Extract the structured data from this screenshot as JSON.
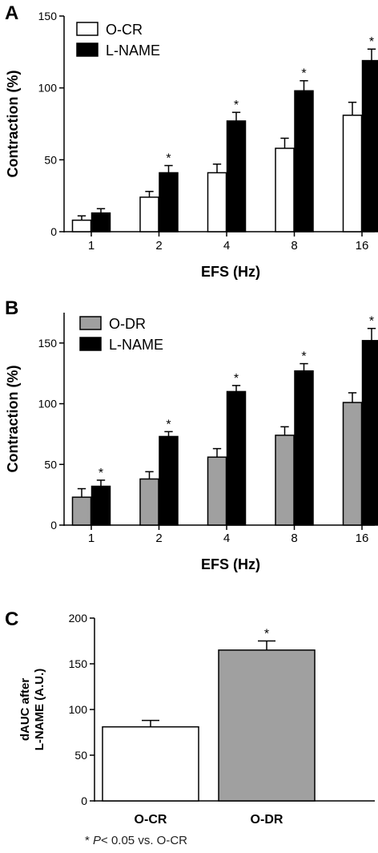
{
  "footnote": {
    "prefix": "* ",
    "p_symbol": "P",
    "text": "< 0.05 vs. O-CR"
  },
  "chart_data": [
    {
      "panel_label": "A",
      "type": "bar",
      "xlabel": "EFS (Hz)",
      "ylabel": "Contraction (%)",
      "ylim": [
        0,
        150
      ],
      "yticks": [
        0,
        50,
        100,
        150
      ],
      "categories": [
        "1",
        "2",
        "4",
        "8",
        "16"
      ],
      "legend_position": "top-left",
      "series": [
        {
          "name": "O-CR",
          "color": "#ffffff",
          "values": [
            8,
            24,
            41,
            58,
            81
          ],
          "errors": [
            3,
            4,
            6,
            7,
            9
          ],
          "significance": [
            "",
            "",
            "",
            "",
            ""
          ]
        },
        {
          "name": "L-NAME",
          "color": "#000000",
          "values": [
            13,
            41,
            77,
            98,
            119
          ],
          "errors": [
            3,
            5,
            6,
            7,
            8
          ],
          "significance": [
            "",
            "*",
            "*",
            "*",
            "*"
          ]
        }
      ]
    },
    {
      "panel_label": "B",
      "type": "bar",
      "xlabel": "EFS (Hz)",
      "ylabel": "Contraction (%)",
      "ylim": [
        0,
        175
      ],
      "yticks": [
        0,
        50,
        100,
        150
      ],
      "categories": [
        "1",
        "2",
        "4",
        "8",
        "16"
      ],
      "legend_position": "top-left",
      "series": [
        {
          "name": "O-DR",
          "color": "#a0a0a0",
          "values": [
            23,
            38,
            56,
            74,
            101
          ],
          "errors": [
            7,
            6,
            7,
            7,
            8
          ],
          "significance": [
            "",
            "",
            "",
            "",
            ""
          ]
        },
        {
          "name": "L-NAME",
          "color": "#000000",
          "values": [
            32,
            73,
            110,
            127,
            152
          ],
          "errors": [
            5,
            4,
            5,
            6,
            10
          ],
          "significance": [
            "*",
            "*",
            "*",
            "*",
            "*"
          ]
        }
      ]
    },
    {
      "panel_label": "C",
      "type": "bar",
      "xlabel": "",
      "ylabel": "dAUC after L-NAME (A.U.)",
      "ylabel_lines": [
        "dAUC after",
        "L-NAME (A.U.)"
      ],
      "ylim": [
        0,
        200
      ],
      "yticks": [
        0,
        50,
        100,
        150,
        200
      ],
      "categories": [
        "O-CR",
        "O-DR"
      ],
      "bar_colors": [
        "#ffffff",
        "#a0a0a0"
      ],
      "values": [
        81,
        165
      ],
      "errors": [
        7,
        10
      ],
      "significance": [
        "",
        "*"
      ]
    }
  ]
}
